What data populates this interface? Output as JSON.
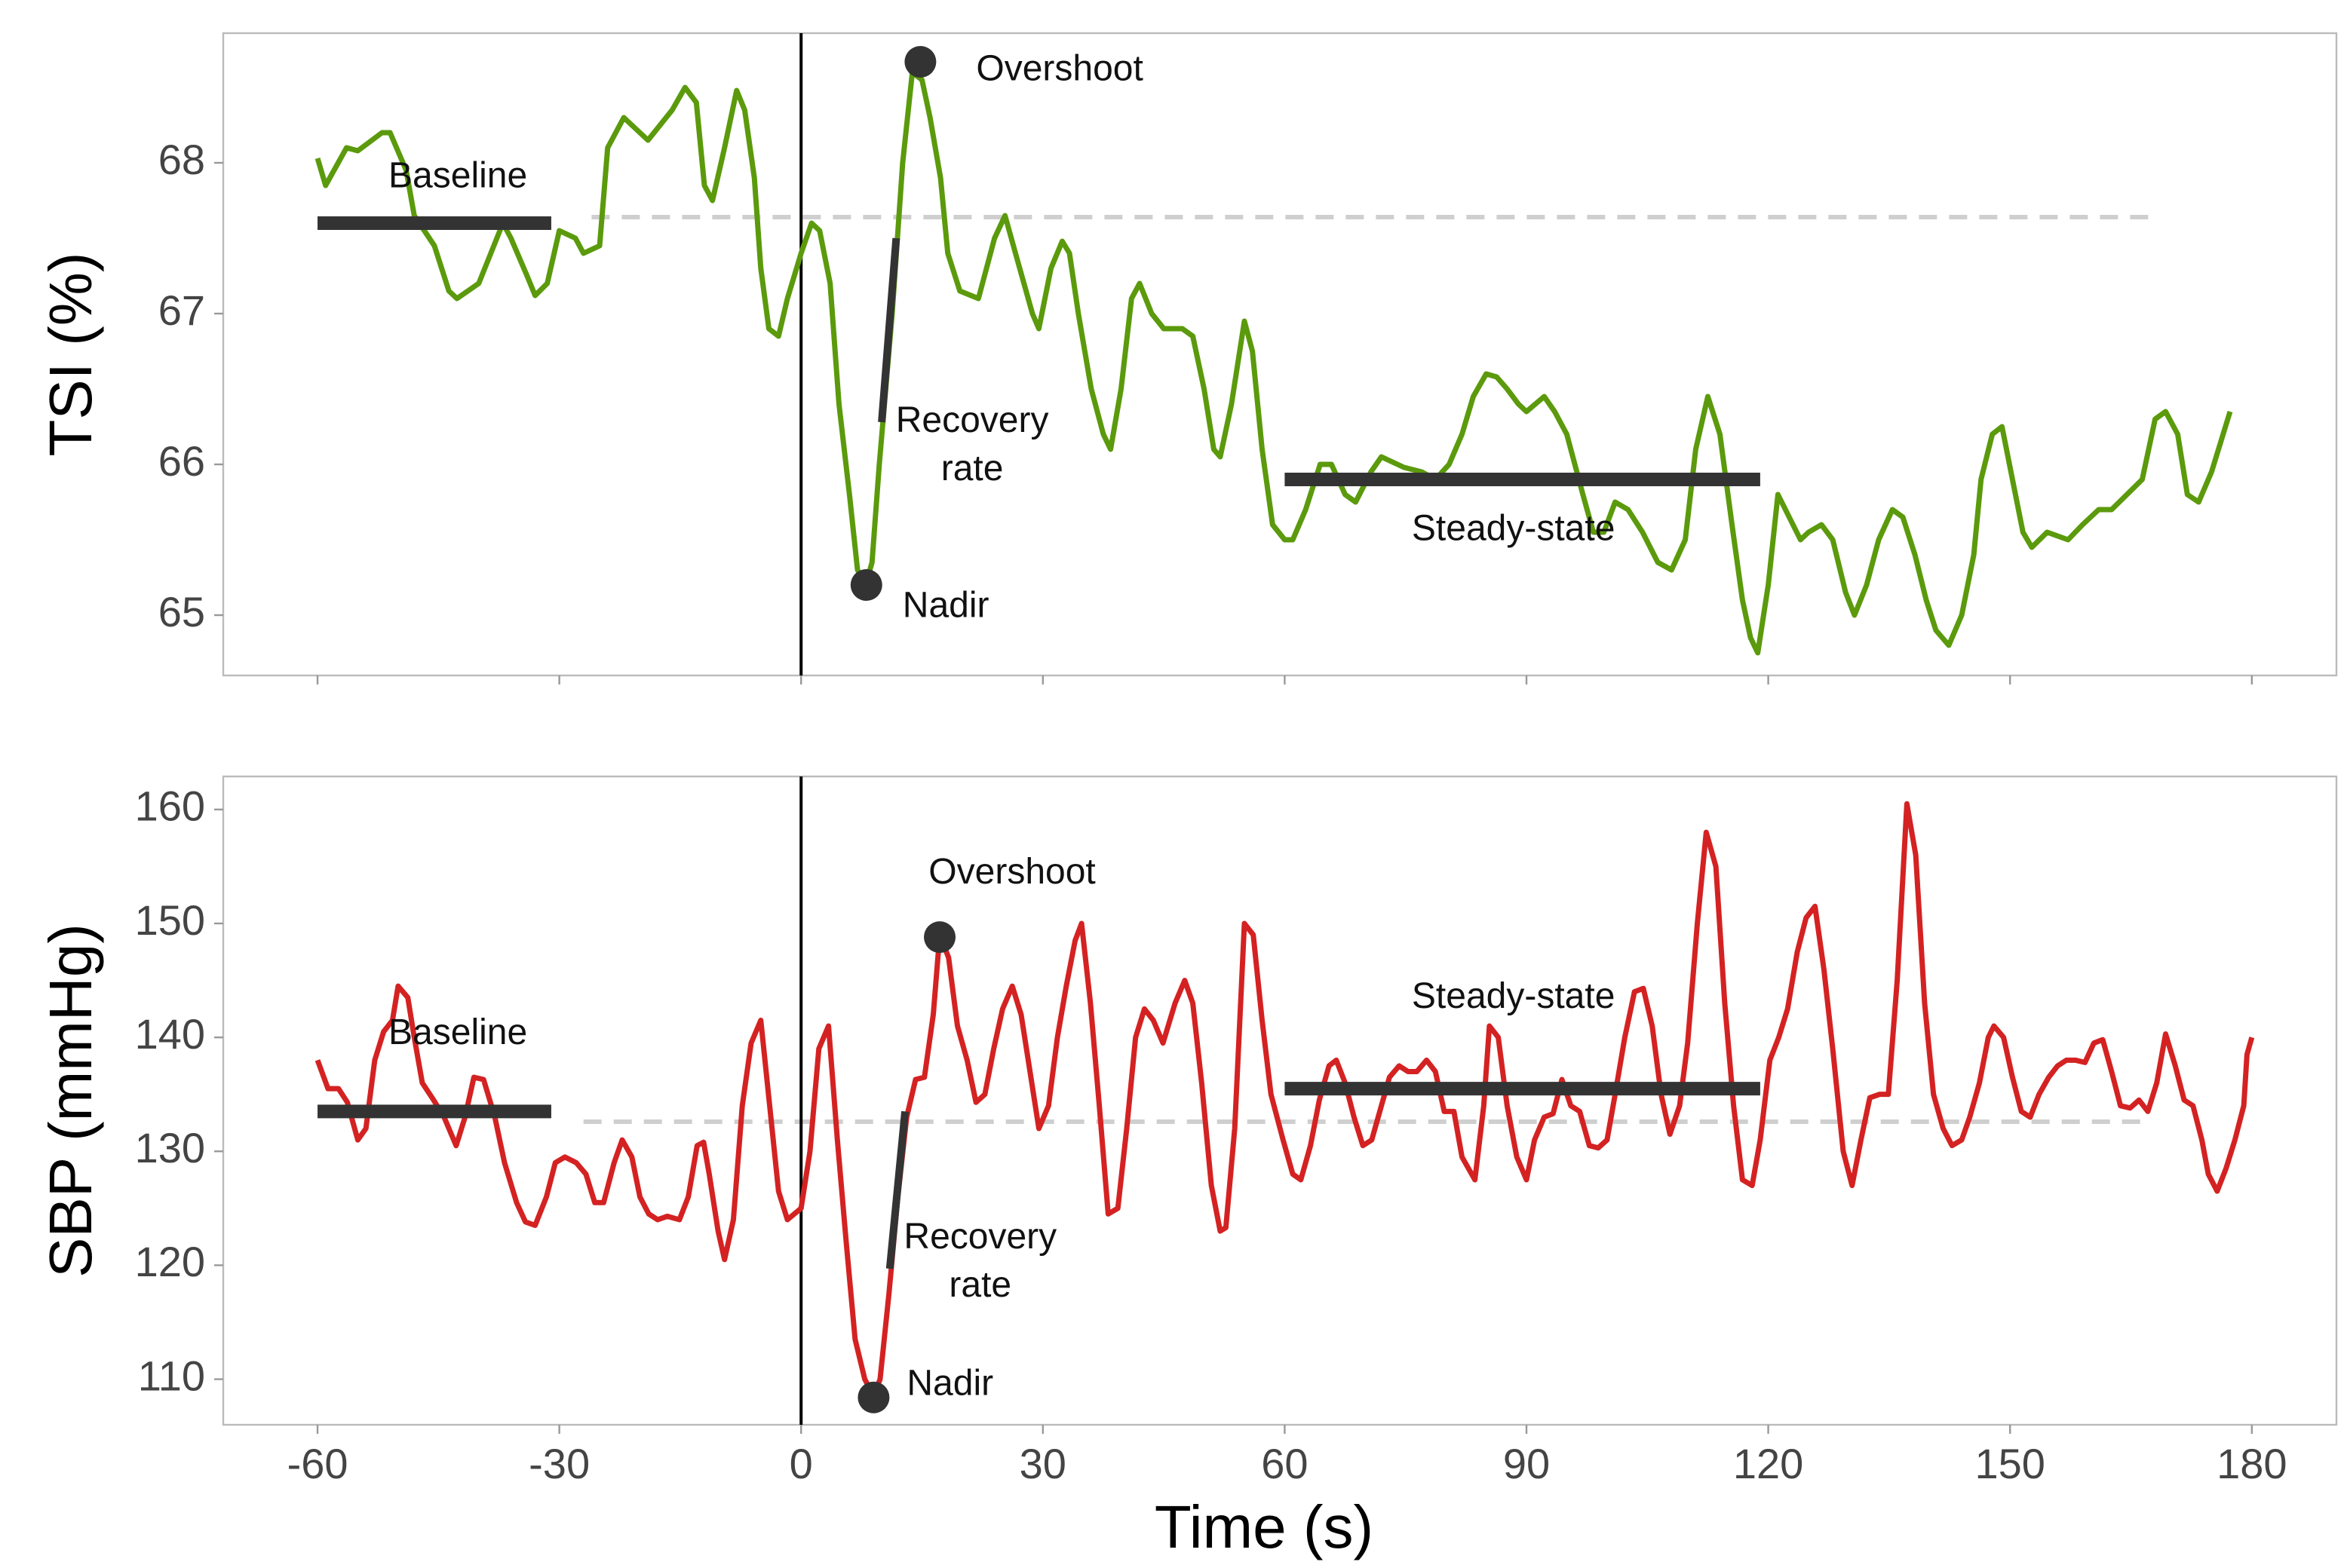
{
  "chart_data": [
    {
      "type": "line",
      "ylabel": "TSI (%)",
      "xlim": [
        -71.7,
        190.5
      ],
      "ylim": [
        64.6,
        68.86
      ],
      "yticks": [
        65,
        66,
        67,
        68
      ],
      "series": [
        {
          "color": "#5b9a0c",
          "x": [
            -60,
            -59,
            -56.4,
            -55,
            -52,
            -51,
            -49,
            -48,
            -45.5,
            -43.7,
            -42.7,
            -40,
            -37,
            -36,
            -34,
            -33,
            -31.5,
            -30,
            -28,
            -27,
            -25,
            -24,
            -22,
            -19,
            -16,
            -14.4,
            -13,
            -12,
            -11,
            -9.5,
            -8,
            -7,
            -5.8,
            -5,
            -4,
            -2.8,
            -1.7,
            0,
            1.3,
            2.3,
            3.6,
            4.7,
            6,
            7,
            8,
            8.8,
            9.7,
            11.3,
            12.6,
            13.8,
            15,
            16,
            17.3,
            18.2,
            19.7,
            22,
            24,
            25.3,
            26.6,
            28.7,
            29.5,
            31,
            32.4,
            33.3,
            34.4,
            36,
            37.5,
            38.4,
            39.7,
            41,
            42,
            43.5,
            45,
            47.3,
            48.6,
            50,
            51.2,
            52,
            53.4,
            55,
            56,
            57.2,
            58.5,
            60,
            61,
            62.6,
            64.4,
            65.8,
            67.5,
            68.8,
            70.7,
            72,
            74.8,
            77,
            78.7,
            80.4,
            82,
            83.4,
            85,
            86.3,
            87.6,
            89,
            90,
            92.2,
            93.5,
            95,
            97,
            98.3,
            99.6,
            101,
            102.6,
            104.4,
            106.3,
            108,
            109.7,
            111,
            112.5,
            114,
            115.5,
            116.8,
            117.8,
            118.7,
            120,
            121.2,
            122.6,
            124,
            125,
            126.6,
            128,
            129.6,
            130.7,
            132.2,
            133.7,
            135.4,
            136.7,
            138.2,
            139.6,
            140.8,
            142.4,
            144,
            145.5,
            146.4,
            147.8,
            149,
            150.3,
            151.6,
            152.7,
            154.6,
            157.2,
            159,
            161,
            162.6,
            164.5,
            166.4,
            168,
            169.3,
            170.8,
            172,
            173.4,
            175,
            177.3
          ],
          "values": [
            68.03,
            67.85,
            68.1,
            68.08,
            68.2,
            68.2,
            67.95,
            67.65,
            67.45,
            67.15,
            67.1,
            67.2,
            67.6,
            67.5,
            67.25,
            67.12,
            67.2,
            67.55,
            67.5,
            67.4,
            67.45,
            68.1,
            68.3,
            68.15,
            68.35,
            68.5,
            68.4,
            67.85,
            67.75,
            68.1,
            68.48,
            68.35,
            67.9,
            67.3,
            66.9,
            66.85,
            67.1,
            67.4,
            67.6,
            67.55,
            67.2,
            66.4,
            65.8,
            65.3,
            65.2,
            65.35,
            66.0,
            67.0,
            68.0,
            68.6,
            68.55,
            68.3,
            67.9,
            67.4,
            67.15,
            67.1,
            67.5,
            67.65,
            67.4,
            67.0,
            66.9,
            67.3,
            67.48,
            67.4,
            67.0,
            66.5,
            66.2,
            66.1,
            66.5,
            67.1,
            67.2,
            67.0,
            66.9,
            66.9,
            66.85,
            66.5,
            66.1,
            66.05,
            66.4,
            66.95,
            66.75,
            66.1,
            65.6,
            65.5,
            65.5,
            65.7,
            66.0,
            66.0,
            65.8,
            65.75,
            65.95,
            66.05,
            65.98,
            65.95,
            65.9,
            66.0,
            66.2,
            66.45,
            66.6,
            66.58,
            66.5,
            66.4,
            66.35,
            66.45,
            66.35,
            66.2,
            65.8,
            65.55,
            65.55,
            65.75,
            65.7,
            65.55,
            65.35,
            65.3,
            65.5,
            66.1,
            66.45,
            66.2,
            65.6,
            65.1,
            64.85,
            64.75,
            65.2,
            65.8,
            65.65,
            65.5,
            65.55,
            65.6,
            65.5,
            65.15,
            65.0,
            65.2,
            65.5,
            65.7,
            65.65,
            65.4,
            65.1,
            64.9,
            64.8,
            65.0,
            65.4,
            65.9,
            66.2,
            66.25,
            65.9,
            65.55,
            65.45,
            65.55,
            65.5,
            65.6,
            65.7,
            65.7,
            65.8,
            65.9,
            66.3,
            66.35,
            66.2,
            65.8,
            65.75,
            65.95,
            66.35
          ]
        }
      ],
      "vline": 0,
      "reference_line": {
        "x": [
          -26,
          168.6
        ],
        "y": 67.64
      },
      "segments": [
        {
          "label": "Baseline",
          "x": [
            -60,
            -31
          ],
          "y": 67.6
        },
        {
          "label": "Steady-state",
          "x": [
            60,
            119
          ],
          "y": 65.9
        }
      ],
      "slope": {
        "label": "Recovery rate",
        "x": [
          10,
          11.8
        ],
        "y": [
          66.28,
          67.5
        ]
      },
      "points": [
        {
          "label": "Overshoot",
          "x": 14.8,
          "y": 68.67
        },
        {
          "label": "Nadir",
          "x": 8.1,
          "y": 65.2
        }
      ]
    },
    {
      "type": "line",
      "ylabel": "SBP (mmHg)",
      "xlabel": "Time (s)",
      "xlim": [
        -71.7,
        190.5
      ],
      "xticks": [
        -60,
        -30,
        0,
        30,
        60,
        90,
        120,
        150,
        180
      ],
      "ylim": [
        106.0,
        162.9
      ],
      "yticks": [
        110,
        120,
        130,
        140,
        150,
        160
      ],
      "series": [
        {
          "color": "#d42222",
          "x": [
            -60,
            -58.7,
            -57.4,
            -56.3,
            -55,
            -54,
            -52.9,
            -51.8,
            -50.7,
            -50,
            -48.8,
            -48,
            -47,
            -45.6,
            -44.3,
            -42.8,
            -41.7,
            -40.6,
            -39.4,
            -38,
            -36.8,
            -35.3,
            -34.2,
            -33,
            -31.6,
            -30.5,
            -29.3,
            -27.9,
            -26.7,
            -25.6,
            -24.5,
            -23.2,
            -22.2,
            -21,
            -20,
            -18.9,
            -17.8,
            -16.6,
            -15.1,
            -14,
            -12.9,
            -12.1,
            -11.4,
            -10.3,
            -9.5,
            -8.4,
            -7.3,
            -6.2,
            -5,
            -3.9,
            -2.8,
            -1.7,
            0,
            1.1,
            2.2,
            3.4,
            4.5,
            5.6,
            6.7,
            7.9,
            9,
            9.8,
            10.9,
            12,
            13.1,
            14.2,
            15.3,
            16.4,
            17.2,
            18.3,
            19.4,
            20.6,
            21.7,
            22.8,
            23.9,
            25,
            26.2,
            27.3,
            28.4,
            29.5,
            30.7,
            31.8,
            32.9,
            34,
            34.8,
            35.9,
            37,
            38.1,
            39.3,
            40.4,
            41.5,
            42.6,
            43.7,
            44.9,
            46.4,
            47.6,
            48.6,
            49.7,
            50.9,
            52,
            52.7,
            53.8,
            55,
            56.1,
            57.2,
            58.3,
            59.8,
            61,
            62,
            63.2,
            64.3,
            65.5,
            66.4,
            67.5,
            68.6,
            69.7,
            70.8,
            72,
            73,
            74.2,
            75.3,
            76.4,
            77.6,
            78.7,
            79.8,
            81,
            82,
            83.6,
            84.7,
            85.4,
            86.5,
            87.6,
            88.8,
            90,
            91,
            92.2,
            93.3,
            94.4,
            95.5,
            96.6,
            97.8,
            98.9,
            100,
            101,
            102.2,
            103.4,
            104.5,
            105.6,
            106.7,
            107.8,
            109,
            110,
            111.2,
            112.3,
            113.5,
            114.6,
            115.7,
            116.8,
            118,
            119,
            120.2,
            121.3,
            122.4,
            123.6,
            124.7,
            125.8,
            126.9,
            128,
            129.3,
            130.4,
            131.5,
            132.6,
            133.8,
            134.9,
            136,
            137.2,
            138.3,
            139.4,
            140.5,
            141.7,
            142.8,
            144,
            145,
            146.2,
            147.3,
            148,
            149.2,
            150.3,
            151.4,
            152.5,
            153.6,
            154.8,
            155.9,
            157,
            158.1,
            159.3,
            160.4,
            161.5,
            162.6,
            163.7,
            164.9,
            166,
            167.1,
            168.2,
            169.3,
            170.5,
            171.6,
            172.7,
            173.8,
            174.6,
            175.7,
            176.8,
            177.9,
            179,
            179.4,
            180
          ],
          "values": [
            138,
            135.5,
            135.5,
            134.3,
            131,
            132,
            138,
            140.5,
            141.5,
            144.5,
            143.5,
            140,
            136,
            134.5,
            133,
            130.5,
            133,
            136.5,
            136.3,
            133,
            129,
            125.5,
            123.8,
            123.5,
            126,
            129,
            129.5,
            129,
            128,
            125.5,
            125.5,
            129,
            131,
            129.5,
            126,
            124.5,
            124,
            124.3,
            124,
            126,
            130.5,
            130.8,
            128,
            123,
            120.5,
            124,
            134,
            139.5,
            141.5,
            134,
            126.5,
            124,
            125,
            130,
            139,
            141,
            131,
            122,
            113.5,
            110,
            108.5,
            110,
            117.5,
            126,
            133,
            136.3,
            136.5,
            142,
            149,
            147,
            141,
            138,
            134.3,
            135,
            139,
            142.5,
            144.5,
            142,
            137,
            132,
            134,
            140,
            144.5,
            148.5,
            150,
            143,
            134,
            124.5,
            125,
            132,
            140,
            142.5,
            141.5,
            139.5,
            143,
            145,
            143,
            136,
            127,
            123,
            123.3,
            132,
            150,
            149,
            141.5,
            135,
            131,
            128,
            127.5,
            130.5,
            134.5,
            137.5,
            138,
            136,
            133,
            130.5,
            131,
            134,
            136.5,
            137.5,
            137,
            137,
            138,
            137,
            133.5,
            133.5,
            129.5,
            127.5,
            134,
            141,
            140,
            134,
            129.5,
            127.5,
            131,
            133,
            133.3,
            136.3,
            134,
            133.5,
            130.5,
            130.3,
            131,
            135,
            140,
            144,
            144.3,
            141,
            135,
            131.5,
            134,
            139.5,
            150,
            158,
            155,
            143,
            134,
            127.5,
            127,
            131,
            138,
            140,
            142.5,
            147.5,
            150.5,
            151.5,
            146,
            139,
            130,
            127,
            131,
            134.7,
            135,
            135,
            145,
            160.5,
            156,
            143,
            135,
            132,
            130.5,
            131,
            133,
            136,
            140,
            141,
            140,
            136.5,
            133.5,
            133,
            135,
            136.5,
            137.5,
            138,
            138,
            137.8,
            139.5,
            139.8,
            137,
            134,
            133.8,
            134.5,
            133.5,
            136,
            140.3,
            137.5,
            134.5,
            134,
            131,
            128,
            126.5,
            128.5,
            131,
            134,
            138.5,
            140
          ]
        }
      ],
      "vline": 0,
      "reference_line": {
        "x": [
          -27,
          167
        ],
        "y": 132.6
      },
      "segments": [
        {
          "label": "Baseline",
          "x": [
            -60,
            -31
          ],
          "y": 133.5
        },
        {
          "label": "Steady-state",
          "x": [
            60,
            119
          ],
          "y": 135.5
        }
      ],
      "slope": {
        "label": "Recovery rate",
        "x": [
          11,
          12.9
        ],
        "y": [
          119.7,
          133.5
        ]
      },
      "points": [
        {
          "label": "Overshoot",
          "x": 17.2,
          "y": 148.8
        },
        {
          "label": "Nadir",
          "x": 9,
          "y": 108.4
        }
      ]
    }
  ]
}
